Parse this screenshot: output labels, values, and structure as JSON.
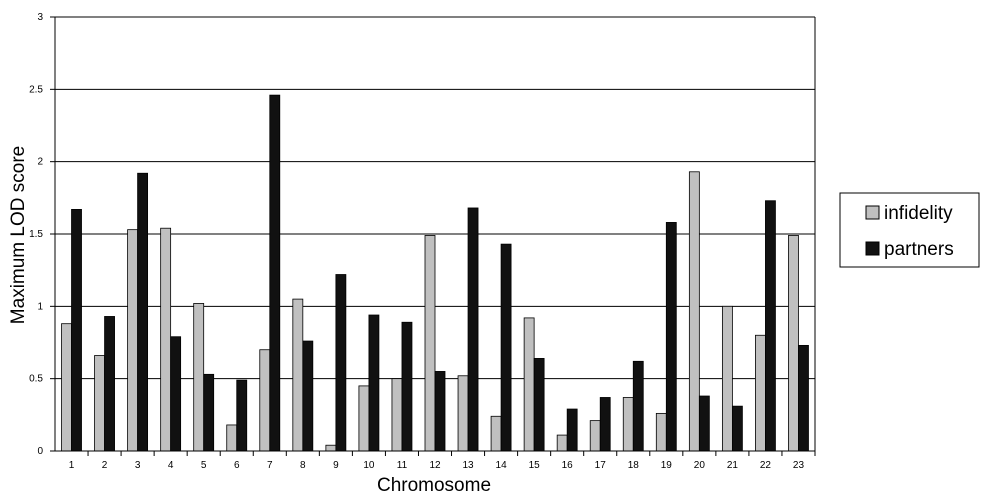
{
  "chart_data": {
    "type": "bar",
    "xlabel": "Chromosome",
    "ylabel": "Maximum LOD score",
    "ylim": [
      0,
      3
    ],
    "yticks": [
      "0",
      "0.5",
      "1",
      "1.5",
      "2",
      "2.5",
      "3"
    ],
    "grid": true,
    "legend_position": "right",
    "categories": [
      "1",
      "2",
      "3",
      "4",
      "5",
      "6",
      "7",
      "8",
      "9",
      "10",
      "11",
      "12",
      "13",
      "14",
      "15",
      "16",
      "17",
      "18",
      "19",
      "20",
      "21",
      "22",
      "23"
    ],
    "series": [
      {
        "name": "infidelity",
        "color": "#c0c0c0",
        "values": [
          0.88,
          0.66,
          1.53,
          1.54,
          1.02,
          0.18,
          0.7,
          1.05,
          0.04,
          0.45,
          0.5,
          1.49,
          0.52,
          0.24,
          0.92,
          0.11,
          0.21,
          0.37,
          0.26,
          1.93,
          1.0,
          0.8,
          1.49
        ]
      },
      {
        "name": "partners",
        "color": "#111111",
        "values": [
          1.67,
          0.93,
          1.92,
          0.79,
          0.53,
          0.49,
          2.46,
          0.76,
          1.22,
          0.94,
          0.89,
          0.55,
          1.68,
          1.43,
          0.64,
          0.29,
          0.37,
          0.62,
          1.58,
          0.38,
          0.31,
          1.73,
          0.73
        ]
      }
    ]
  }
}
